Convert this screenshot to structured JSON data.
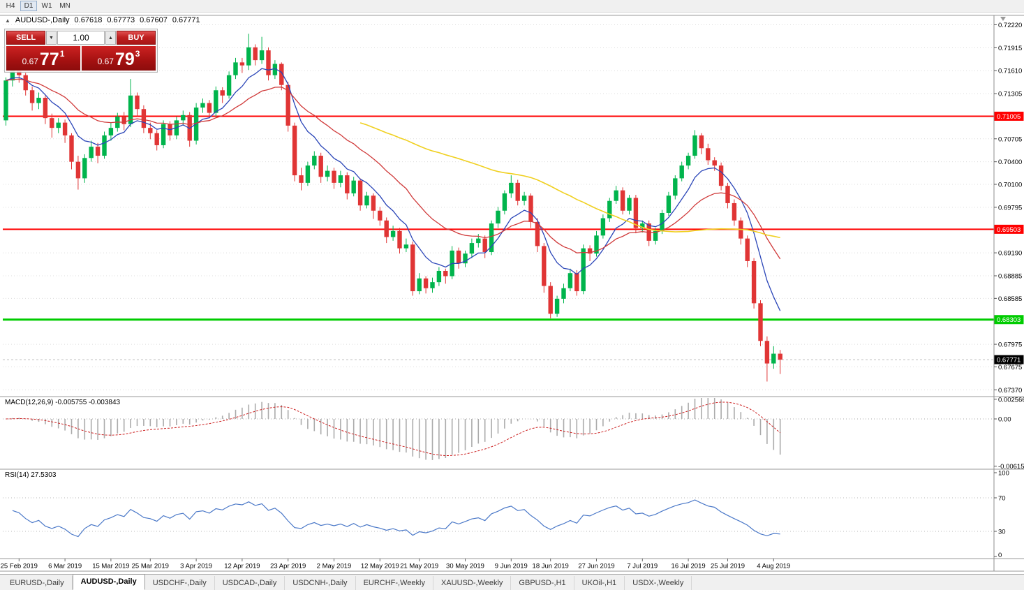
{
  "toolbar": {
    "timeframes": [
      {
        "label": "H4",
        "active": false
      },
      {
        "label": "D1",
        "active": true
      },
      {
        "label": "W1",
        "active": false
      },
      {
        "label": "MN",
        "active": false
      }
    ]
  },
  "chart_header": {
    "collapse_icon": "▲",
    "title": "AUDUSD-,Daily",
    "open": "0.67618",
    "high": "0.67773",
    "low": "0.67607",
    "close": "0.67771"
  },
  "trade_panel": {
    "sell_label": "SELL",
    "buy_label": "BUY",
    "volume": "1.00",
    "spinner_down": "▼",
    "spinner_up": "▲",
    "sell_price_int": "0.67",
    "sell_price_big": "77",
    "sell_price_sup": "1",
    "buy_price_int": "0.67",
    "buy_price_big": "79",
    "buy_price_sup": "3"
  },
  "indicators": {
    "macd": {
      "label": "MACD(12,26,9) -0.005755 -0.003843",
      "main_value": "-0.005755",
      "signal_value": "-0.003843",
      "scale": [
        {
          "label": "0.002566",
          "value": 0.002566
        },
        {
          "label": "0.00",
          "value": 0
        },
        {
          "label": "-0.006151",
          "value": -0.006151
        }
      ]
    },
    "rsi": {
      "label": "RSI(14) 27.5303",
      "current_value": "27.5303",
      "scale": [
        {
          "label": "100",
          "value": 100
        },
        {
          "label": "70",
          "value": 70
        },
        {
          "label": "30",
          "value": 30
        },
        {
          "label": "0",
          "value": 0
        }
      ],
      "levels": [
        70,
        30
      ]
    }
  },
  "colors": {
    "candle_up": "#00b44c",
    "candle_down": "#e03535",
    "ma_fast_blue": "#2b46b8",
    "ma_mid_red": "#d03a3a",
    "ma_slow_yellow": "#f0d020",
    "resistance_red": "#ff0000",
    "support_green": "#00cc00",
    "macd_hist": "#ababab",
    "macd_signal": "#cc2020",
    "rsi_line": "#4a78c8",
    "current_tag_bg": "#000000",
    "grid": "#dcdcdc"
  },
  "tabs": [
    {
      "label": "EURUSD-,Daily",
      "active": false
    },
    {
      "label": "AUDUSD-,Daily",
      "active": true
    },
    {
      "label": "USDCHF-,Daily",
      "active": false
    },
    {
      "label": "USDCAD-,Daily",
      "active": false
    },
    {
      "label": "USDCNH-,Daily",
      "active": false
    },
    {
      "label": "EURCHF-,Weekly",
      "active": false
    },
    {
      "label": "XAUUSD-,Weekly",
      "active": false
    },
    {
      "label": "GBPUSD-,H1",
      "active": false
    },
    {
      "label": "UKOil-,H1",
      "active": false
    },
    {
      "label": "USDX-,Weekly",
      "active": false
    }
  ],
  "chart_data": {
    "type": "candlestick",
    "symbol": "AUDUSD-",
    "timeframe": "Daily",
    "ohlc_current": {
      "open": 0.67618,
      "high": 0.67773,
      "low": 0.67607,
      "close": 0.67771
    },
    "price_axis_range": {
      "top": 0.72345,
      "bottom": 0.6728
    },
    "y_ticks": [
      {
        "label": "0.72220",
        "price": 0.7222
      },
      {
        "label": "0.71915",
        "price": 0.71915
      },
      {
        "label": "0.71610",
        "price": 0.7161
      },
      {
        "label": "0.71305",
        "price": 0.71305
      },
      {
        "label": "0.70705",
        "price": 0.70705
      },
      {
        "label": "0.70400",
        "price": 0.704
      },
      {
        "label": "0.70100",
        "price": 0.701
      },
      {
        "label": "0.69795",
        "price": 0.69795
      },
      {
        "label": "0.69190",
        "price": 0.6919
      },
      {
        "label": "0.68885",
        "price": 0.68885
      },
      {
        "label": "0.68585",
        "price": 0.68585
      },
      {
        "label": "0.67975",
        "price": 0.67975
      },
      {
        "label": "0.67675",
        "price": 0.67675
      },
      {
        "label": "0.67370",
        "price": 0.6737
      }
    ],
    "hlines": [
      {
        "price": 0.71005,
        "label": "0.71005",
        "color": "#ff0000",
        "width": 2
      },
      {
        "price": 0.69503,
        "label": "0.69503",
        "color": "#ff0000",
        "width": 2
      },
      {
        "price": 0.68303,
        "label": "0.68303",
        "color": "#00cc00",
        "width": 3
      }
    ],
    "current_price": {
      "value": 0.67771,
      "label": "0.67771"
    },
    "moving_averages": [
      {
        "type": "ema",
        "period": 8,
        "color": "#2b46b8",
        "width": 1.3
      },
      {
        "type": "ema",
        "period": 21,
        "color": "#d03a3a",
        "width": 1.3
      },
      {
        "type": "sma",
        "period": 55,
        "color": "#f0d020",
        "width": 1.6
      }
    ],
    "macd_params": {
      "fast": 12,
      "slow": 26,
      "signal": 9
    },
    "rsi_params": {
      "period": 14
    },
    "date_labels": [
      {
        "i": 2,
        "label": "25 Feb 2019"
      },
      {
        "i": 9,
        "label": "6 Mar 2019"
      },
      {
        "i": 16,
        "label": "15 Mar 2019"
      },
      {
        "i": 22,
        "label": "25 Mar 2019"
      },
      {
        "i": 29,
        "label": "3 Apr 2019"
      },
      {
        "i": 36,
        "label": "12 Apr 2019"
      },
      {
        "i": 43,
        "label": "23 Apr 2019"
      },
      {
        "i": 50,
        "label": "2 May 2019"
      },
      {
        "i": 57,
        "label": "12 May 2019"
      },
      {
        "i": 63,
        "label": "21 May 2019"
      },
      {
        "i": 70,
        "label": "30 May 2019"
      },
      {
        "i": 77,
        "label": "9 Jun 2019"
      },
      {
        "i": 83,
        "label": "18 Jun 2019"
      },
      {
        "i": 90,
        "label": "27 Jun 2019"
      },
      {
        "i": 97,
        "label": "7 Jul 2019"
      },
      {
        "i": 104,
        "label": "16 Jul 2019"
      },
      {
        "i": 110,
        "label": "25 Jul 2019"
      },
      {
        "i": 117,
        "label": "4 Aug 2019"
      }
    ],
    "candles": [
      [
        0.7095,
        0.7152,
        0.7088,
        0.7148
      ],
      [
        0.7148,
        0.7168,
        0.714,
        0.7162
      ],
      [
        0.7162,
        0.7166,
        0.7145,
        0.7155
      ],
      [
        0.7155,
        0.7158,
        0.7128,
        0.7135
      ],
      [
        0.7135,
        0.714,
        0.7108,
        0.7118
      ],
      [
        0.7118,
        0.7132,
        0.711,
        0.7125
      ],
      [
        0.7125,
        0.7128,
        0.709,
        0.7098
      ],
      [
        0.7098,
        0.7104,
        0.7072,
        0.7085
      ],
      [
        0.7085,
        0.7098,
        0.7078,
        0.7092
      ],
      [
        0.7092,
        0.7096,
        0.7065,
        0.7075
      ],
      [
        0.7075,
        0.7078,
        0.703,
        0.704
      ],
      [
        0.704,
        0.7048,
        0.7003,
        0.7018
      ],
      [
        0.7018,
        0.705,
        0.7012,
        0.7045
      ],
      [
        0.7045,
        0.7068,
        0.704,
        0.706
      ],
      [
        0.706,
        0.7065,
        0.7038,
        0.7048
      ],
      [
        0.7048,
        0.708,
        0.7044,
        0.7075
      ],
      [
        0.7075,
        0.7092,
        0.7068,
        0.7085
      ],
      [
        0.7085,
        0.7105,
        0.708,
        0.71
      ],
      [
        0.71,
        0.7106,
        0.7082,
        0.709
      ],
      [
        0.709,
        0.715,
        0.7086,
        0.7128
      ],
      [
        0.7128,
        0.7132,
        0.71,
        0.711
      ],
      [
        0.711,
        0.7115,
        0.7078,
        0.7085
      ],
      [
        0.7085,
        0.7092,
        0.707,
        0.7078
      ],
      [
        0.7078,
        0.7082,
        0.7055,
        0.7062
      ],
      [
        0.7062,
        0.7095,
        0.7058,
        0.709
      ],
      [
        0.709,
        0.7094,
        0.7068,
        0.7075
      ],
      [
        0.7075,
        0.71,
        0.707,
        0.7095
      ],
      [
        0.7095,
        0.7108,
        0.7088,
        0.7102
      ],
      [
        0.7102,
        0.7106,
        0.706,
        0.7068
      ],
      [
        0.7068,
        0.7118,
        0.7063,
        0.7112
      ],
      [
        0.7112,
        0.7124,
        0.7105,
        0.7118
      ],
      [
        0.7118,
        0.7122,
        0.7098,
        0.7105
      ],
      [
        0.7105,
        0.714,
        0.71,
        0.7135
      ],
      [
        0.7135,
        0.7139,
        0.7118,
        0.7128
      ],
      [
        0.7128,
        0.716,
        0.7124,
        0.7155
      ],
      [
        0.7155,
        0.7178,
        0.715,
        0.7172
      ],
      [
        0.7172,
        0.7178,
        0.7158,
        0.7168
      ],
      [
        0.7168,
        0.721,
        0.7162,
        0.7192
      ],
      [
        0.7192,
        0.7196,
        0.7168,
        0.7175
      ],
      [
        0.7175,
        0.7206,
        0.717,
        0.7188
      ],
      [
        0.7188,
        0.7192,
        0.7148,
        0.7155
      ],
      [
        0.7155,
        0.7175,
        0.715,
        0.717
      ],
      [
        0.717,
        0.7172,
        0.7135,
        0.7142
      ],
      [
        0.7142,
        0.7146,
        0.708,
        0.7088
      ],
      [
        0.7088,
        0.7092,
        0.7014,
        0.7022
      ],
      [
        0.7022,
        0.7032,
        0.7002,
        0.7012
      ],
      [
        0.7012,
        0.704,
        0.7008,
        0.7035
      ],
      [
        0.7035,
        0.7054,
        0.703,
        0.7048
      ],
      [
        0.7048,
        0.7052,
        0.7012,
        0.702
      ],
      [
        0.702,
        0.7035,
        0.7014,
        0.7028
      ],
      [
        0.7028,
        0.7032,
        0.7004,
        0.7012
      ],
      [
        0.7012,
        0.7028,
        0.7006,
        0.7022
      ],
      [
        0.7022,
        0.7026,
        0.699,
        0.6998
      ],
      [
        0.6998,
        0.702,
        0.6994,
        0.7015
      ],
      [
        0.7015,
        0.7018,
        0.6975,
        0.6982
      ],
      [
        0.6982,
        0.7,
        0.6978,
        0.6995
      ],
      [
        0.6995,
        0.6998,
        0.6964,
        0.6975
      ],
      [
        0.6975,
        0.698,
        0.6955,
        0.6962
      ],
      [
        0.6962,
        0.6966,
        0.6932,
        0.694
      ],
      [
        0.694,
        0.6955,
        0.6935,
        0.6948
      ],
      [
        0.6948,
        0.6952,
        0.6918,
        0.6925
      ],
      [
        0.6925,
        0.6938,
        0.692,
        0.693
      ],
      [
        0.693,
        0.6934,
        0.6862,
        0.6868
      ],
      [
        0.6868,
        0.6892,
        0.6864,
        0.6885
      ],
      [
        0.6885,
        0.6888,
        0.6865,
        0.6872
      ],
      [
        0.6872,
        0.6886,
        0.6866,
        0.688
      ],
      [
        0.688,
        0.69,
        0.6875,
        0.6895
      ],
      [
        0.6895,
        0.6898,
        0.6878,
        0.6888
      ],
      [
        0.6888,
        0.6928,
        0.6884,
        0.6922
      ],
      [
        0.6922,
        0.6926,
        0.6898,
        0.6905
      ],
      [
        0.6905,
        0.6922,
        0.69,
        0.6918
      ],
      [
        0.6918,
        0.6938,
        0.6912,
        0.6932
      ],
      [
        0.6932,
        0.6944,
        0.6926,
        0.6938
      ],
      [
        0.6938,
        0.6942,
        0.6912,
        0.692
      ],
      [
        0.692,
        0.6962,
        0.6916,
        0.6958
      ],
      [
        0.6958,
        0.698,
        0.6952,
        0.6975
      ],
      [
        0.6975,
        0.7002,
        0.697,
        0.6998
      ],
      [
        0.6998,
        0.7022,
        0.6992,
        0.7012
      ],
      [
        0.7012,
        0.7016,
        0.6982,
        0.6988
      ],
      [
        0.6988,
        0.7,
        0.6982,
        0.6995
      ],
      [
        0.6995,
        0.6998,
        0.6952,
        0.696
      ],
      [
        0.696,
        0.6965,
        0.692,
        0.6928
      ],
      [
        0.6928,
        0.6932,
        0.6866,
        0.6875
      ],
      [
        0.6875,
        0.688,
        0.6832,
        0.6838
      ],
      [
        0.6838,
        0.6862,
        0.6834,
        0.6858
      ],
      [
        0.6858,
        0.6878,
        0.6852,
        0.6872
      ],
      [
        0.6872,
        0.6898,
        0.6868,
        0.6892
      ],
      [
        0.6892,
        0.6896,
        0.6862,
        0.6868
      ],
      [
        0.6868,
        0.693,
        0.6864,
        0.6925
      ],
      [
        0.6925,
        0.6929,
        0.6908,
        0.6918
      ],
      [
        0.6918,
        0.6948,
        0.6914,
        0.6942
      ],
      [
        0.6942,
        0.697,
        0.6938,
        0.6965
      ],
      [
        0.6965,
        0.6992,
        0.696,
        0.6988
      ],
      [
        0.6988,
        0.7008,
        0.6984,
        0.7002
      ],
      [
        0.7002,
        0.7006,
        0.697,
        0.6975
      ],
      [
        0.6975,
        0.6996,
        0.697,
        0.6992
      ],
      [
        0.6992,
        0.6996,
        0.6945,
        0.6952
      ],
      [
        0.6952,
        0.6962,
        0.6946,
        0.6958
      ],
      [
        0.6958,
        0.6962,
        0.6928,
        0.6935
      ],
      [
        0.6935,
        0.6952,
        0.693,
        0.6948
      ],
      [
        0.6948,
        0.6976,
        0.6944,
        0.6972
      ],
      [
        0.6972,
        0.7,
        0.6968,
        0.6995
      ],
      [
        0.6995,
        0.7022,
        0.699,
        0.7018
      ],
      [
        0.7018,
        0.704,
        0.7014,
        0.7035
      ],
      [
        0.7035,
        0.7052,
        0.703,
        0.7048
      ],
      [
        0.7048,
        0.7082,
        0.7044,
        0.7075
      ],
      [
        0.7075,
        0.7078,
        0.705,
        0.7058
      ],
      [
        0.7058,
        0.7064,
        0.7036,
        0.7042
      ],
      [
        0.7042,
        0.7046,
        0.7028,
        0.7035
      ],
      [
        0.7035,
        0.7039,
        0.7002,
        0.7008
      ],
      [
        0.7008,
        0.7012,
        0.6978,
        0.6985
      ],
      [
        0.6985,
        0.699,
        0.6955,
        0.6962
      ],
      [
        0.6962,
        0.6966,
        0.693,
        0.6938
      ],
      [
        0.6938,
        0.6942,
        0.69,
        0.6908
      ],
      [
        0.6908,
        0.6912,
        0.6845,
        0.6852
      ],
      [
        0.6852,
        0.6856,
        0.6795,
        0.6802
      ],
      [
        0.6802,
        0.6808,
        0.6748,
        0.6772
      ],
      [
        0.6772,
        0.6795,
        0.6765,
        0.6785
      ],
      [
        0.6785,
        0.679,
        0.6758,
        0.67771
      ]
    ]
  }
}
